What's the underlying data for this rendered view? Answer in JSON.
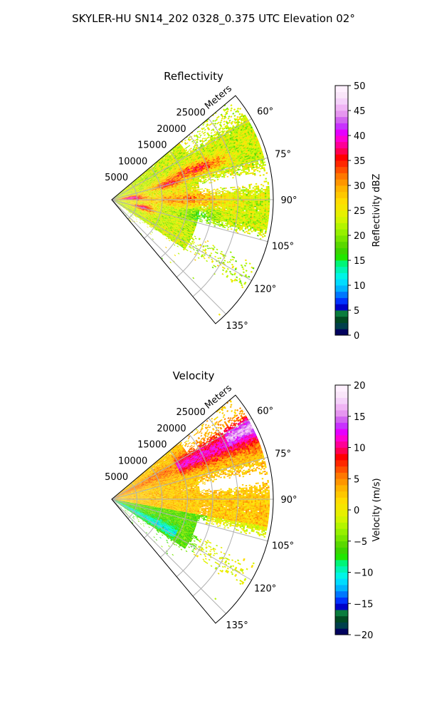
{
  "figure": {
    "title": "SKYLER-HU  SN14_202  0328_0.375 UTC Elevation 02°"
  },
  "chart_data": [
    {
      "type": "heatmap",
      "subtype": "polar-sector-ppi",
      "title": "Reflectivity",
      "range_label": "Meters",
      "range_ticks": [
        5000,
        10000,
        15000,
        20000,
        25000
      ],
      "range_tick_labels": [
        "5000",
        "10000",
        "15000",
        "20000",
        "25000"
      ],
      "range_max": 32000,
      "azimuth_range": [
        50,
        140
      ],
      "azimuth_ticks": [
        60,
        75,
        90,
        105,
        120,
        135
      ],
      "azimuth_tick_labels": [
        "60°",
        "75°",
        "90°",
        "105°",
        "120°",
        "135°"
      ],
      "grid": true,
      "colorbar": {
        "label": "Reflectivity dBZ",
        "range": [
          0,
          50
        ],
        "ticks": [
          0,
          5,
          10,
          15,
          20,
          25,
          30,
          35,
          40,
          45,
          50
        ],
        "tick_labels": [
          "0",
          "5",
          "10",
          "15",
          "20",
          "25",
          "30",
          "35",
          "40",
          "45",
          "50"
        ],
        "colors": [
          "#02035e",
          "#003f4b",
          "#014a22",
          "#0a7c3d",
          "#0000c8",
          "#0033ff",
          "#0077ff",
          "#00b4ff",
          "#00dcff",
          "#00f5e6",
          "#00f5b4",
          "#00f578",
          "#22e600",
          "#3cd400",
          "#5ad800",
          "#78e600",
          "#96f000",
          "#b4f500",
          "#d2f500",
          "#e6f000",
          "#f5e600",
          "#ffdc00",
          "#ffc800",
          "#ffb400",
          "#ff9600",
          "#ff7800",
          "#ff5000",
          "#ff2800",
          "#ff0000",
          "#ff0050",
          "#ff0096",
          "#ff00d2",
          "#e600ff",
          "#c832ff",
          "#d264f0",
          "#e696f0",
          "#f0b4f5",
          "#f5d2fa",
          "#fae6fa",
          "#fff0ff"
        ]
      }
    },
    {
      "type": "heatmap",
      "subtype": "polar-sector-ppi",
      "title": "Velocity",
      "range_label": "Meters",
      "range_ticks": [
        5000,
        10000,
        15000,
        20000,
        25000
      ],
      "range_tick_labels": [
        "5000",
        "10000",
        "15000",
        "20000",
        "25000"
      ],
      "range_max": 32000,
      "azimuth_range": [
        50,
        140
      ],
      "azimuth_ticks": [
        60,
        75,
        90,
        105,
        120,
        135
      ],
      "azimuth_tick_labels": [
        "60°",
        "75°",
        "90°",
        "105°",
        "120°",
        "135°"
      ],
      "grid": true,
      "colorbar": {
        "label": "Velocity (m/s)",
        "range": [
          -20,
          20
        ],
        "ticks": [
          -20,
          -15,
          -10,
          -5,
          0,
          5,
          10,
          15,
          20
        ],
        "tick_labels": [
          "−20",
          "−15",
          "−10",
          "−5",
          "0",
          "5",
          "10",
          "15",
          "20"
        ],
        "colors": [
          "#02035e",
          "#003f4b",
          "#014a22",
          "#0a7c3d",
          "#0000c8",
          "#0033ff",
          "#0077ff",
          "#00b4ff",
          "#00dcff",
          "#00f5e6",
          "#00f5b4",
          "#00f578",
          "#22e600",
          "#3cd400",
          "#5ad800",
          "#78e600",
          "#96f000",
          "#b4f500",
          "#d2f500",
          "#e6f000",
          "#f5e600",
          "#ffdc00",
          "#ffc800",
          "#ffb400",
          "#ff9600",
          "#ff7800",
          "#ff5000",
          "#ff2800",
          "#ff0000",
          "#ff0050",
          "#ff0096",
          "#ff00d2",
          "#e600ff",
          "#c832ff",
          "#d264f0",
          "#e696f0",
          "#f0b4f5",
          "#f5d2fa",
          "#fae6fa",
          "#fff0ff"
        ]
      }
    }
  ]
}
